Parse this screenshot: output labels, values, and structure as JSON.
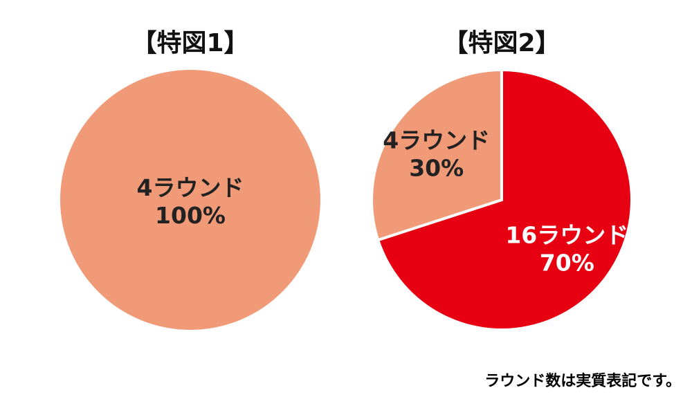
{
  "colors": {
    "four_round": "#f09a78",
    "sixteen_round": "#e60012",
    "label_dark": "#222222",
    "label_light": "#ffffff",
    "title": "#111111",
    "background": "#ffffff"
  },
  "chart_data": [
    {
      "type": "pie",
      "title": "【特図1】",
      "slices": [
        {
          "name": "4ラウンド",
          "percent_label": "100%",
          "value": 100,
          "color_key": "four_round",
          "label_color_key": "label_dark"
        }
      ]
    },
    {
      "type": "pie",
      "title": "【特図2】",
      "start_angle_deg": 0,
      "slices": [
        {
          "name": "16ラウンド",
          "percent_label": "70%",
          "value": 70,
          "color_key": "sixteen_round",
          "label_color_key": "label_light"
        },
        {
          "name": "4ラウンド",
          "percent_label": "30%",
          "value": 30,
          "color_key": "four_round",
          "label_color_key": "label_dark"
        }
      ]
    }
  ],
  "footnote": "ラウンド数は実質表記です。"
}
